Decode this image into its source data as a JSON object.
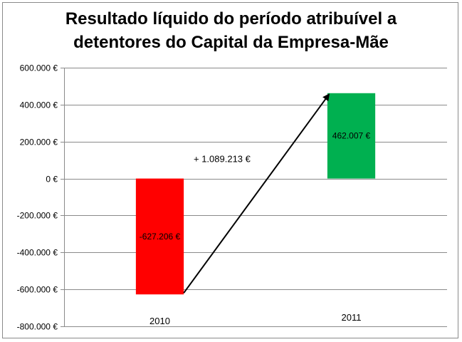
{
  "chart_data": {
    "type": "bar",
    "title_line1": "Resultado líquido do período atribuível a",
    "title_line2": "detentores do Capital da Empresa-Mãe",
    "categories": [
      "2010",
      "2011"
    ],
    "values": [
      -627206,
      462007
    ],
    "data_labels": [
      "-627.206 €",
      "462.007 €"
    ],
    "colors": [
      "#ff0000",
      "#00b050"
    ],
    "ylim": [
      -800000,
      600000
    ],
    "yticks": [
      600000,
      400000,
      200000,
      0,
      -200000,
      -400000,
      -600000,
      -800000
    ],
    "ytick_labels": [
      "600.000 €",
      "400.000 €",
      "200.000 €",
      "0 €",
      "-200.000 €",
      "-400.000 €",
      "-600.000 €",
      "-800.000 €"
    ],
    "grid": true,
    "legend": "none",
    "annotation": "+ 1.089.213 €"
  }
}
